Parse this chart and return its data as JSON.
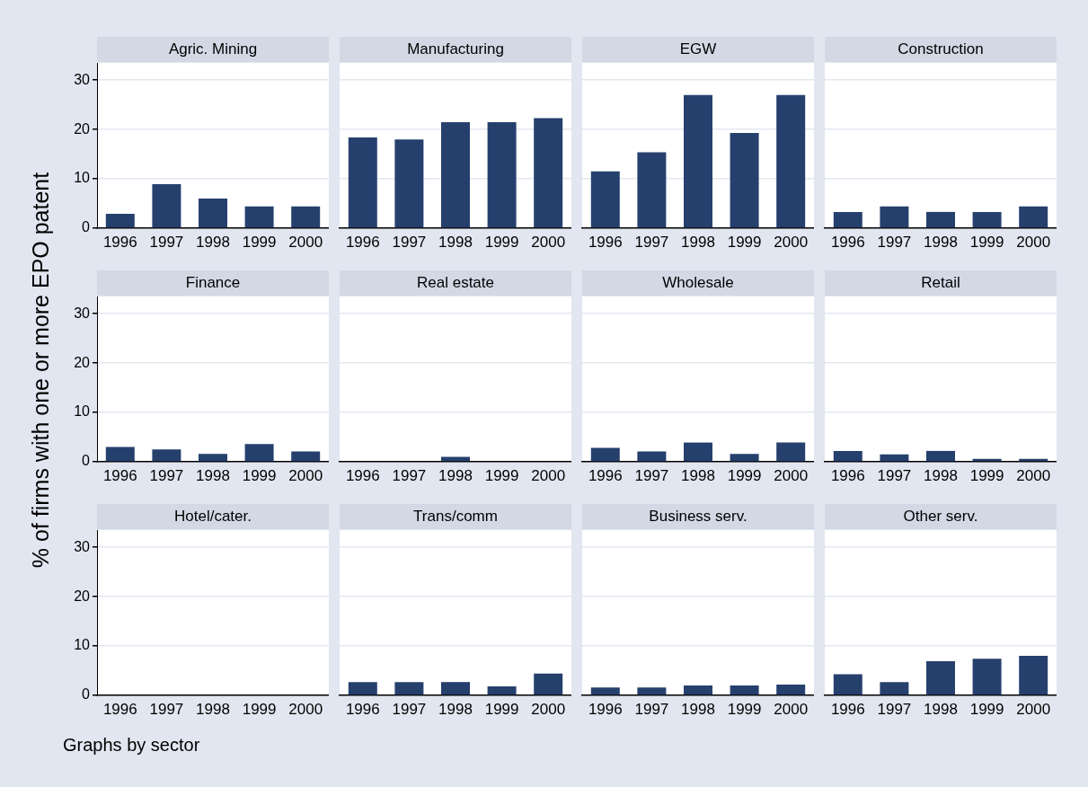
{
  "chart_data": [
    {
      "type": "bar",
      "title": "Agric. Mining",
      "ylabel": "% of firms with one or more EPO patent",
      "categories": [
        "1996",
        "1997",
        "1998",
        "1999",
        "2000"
      ],
      "values": [
        2.9,
        8.9,
        6.0,
        4.4,
        4.4
      ],
      "color": "#26406e",
      "ylim": [
        0,
        33.5
      ],
      "yticks": [
        0,
        10,
        20,
        30
      ],
      "grid": "y"
    },
    {
      "type": "bar",
      "title": "Manufacturing",
      "categories": [
        "1996",
        "1997",
        "1998",
        "1999",
        "2000"
      ],
      "values": [
        18.4,
        18.0,
        21.5,
        21.5,
        22.3
      ],
      "color": "#26406e",
      "ylim": [
        0,
        33.5
      ],
      "yticks": [
        0,
        10,
        20,
        30
      ],
      "grid": "y",
      "tick_labels": "x"
    },
    {
      "type": "bar",
      "title": "EGW",
      "categories": [
        "1996",
        "1997",
        "1998",
        "1999",
        "2000"
      ],
      "values": [
        11.5,
        15.4,
        27.0,
        19.3,
        27.0
      ],
      "color": "#26406e",
      "ylim": [
        0,
        33.5
      ],
      "yticks": [
        0,
        10,
        20,
        30
      ],
      "grid": "y",
      "tick_labels": "x"
    },
    {
      "type": "bar",
      "title": "Construction",
      "categories": [
        "1996",
        "1997",
        "1998",
        "1999",
        "2000"
      ],
      "values": [
        3.3,
        4.4,
        3.3,
        3.3,
        4.4
      ],
      "color": "#26406e",
      "ylim": [
        0,
        33.5
      ],
      "yticks": [
        0,
        10,
        20,
        30
      ],
      "grid": "y",
      "tick_labels": "x"
    },
    {
      "type": "bar",
      "title": "Finance",
      "categories": [
        "1996",
        "1997",
        "1998",
        "1999",
        "2000"
      ],
      "values": [
        3.0,
        2.5,
        1.6,
        3.6,
        2.1
      ],
      "color": "#26406e",
      "ylim": [
        0,
        33.5
      ],
      "yticks": [
        0,
        10,
        20,
        30
      ],
      "grid": "y"
    },
    {
      "type": "bar",
      "title": "Real estate",
      "categories": [
        "1996",
        "1997",
        "1998",
        "1999",
        "2000"
      ],
      "values": [
        0,
        0,
        1.0,
        0,
        0
      ],
      "color": "#26406e",
      "ylim": [
        0,
        33.5
      ],
      "yticks": [
        0,
        10,
        20,
        30
      ],
      "grid": "y",
      "tick_labels": "x"
    },
    {
      "type": "bar",
      "title": "Wholesale",
      "categories": [
        "1996",
        "1997",
        "1998",
        "1999",
        "2000"
      ],
      "values": [
        2.8,
        2.1,
        3.9,
        1.6,
        3.9
      ],
      "color": "#26406e",
      "ylim": [
        0,
        33.5
      ],
      "yticks": [
        0,
        10,
        20,
        30
      ],
      "grid": "y",
      "tick_labels": "x"
    },
    {
      "type": "bar",
      "title": "Retail",
      "categories": [
        "1996",
        "1997",
        "1998",
        "1999",
        "2000"
      ],
      "values": [
        2.2,
        1.5,
        2.2,
        0.6,
        0.6
      ],
      "color": "#26406e",
      "ylim": [
        0,
        33.5
      ],
      "yticks": [
        0,
        10,
        20,
        30
      ],
      "grid": "y",
      "tick_labels": "x"
    },
    {
      "type": "bar",
      "title": "Hotel/cater.",
      "annotations": [
        "Graphs by sector"
      ],
      "categories": [
        "1996",
        "1997",
        "1998",
        "1999",
        "2000"
      ],
      "values": [
        0,
        0,
        0,
        0,
        0
      ],
      "color": "#26406e",
      "ylim": [
        0,
        33.5
      ],
      "yticks": [
        0,
        10,
        20,
        30
      ],
      "grid": "y"
    },
    {
      "type": "bar",
      "title": "Trans/comm",
      "categories": [
        "1996",
        "1997",
        "1998",
        "1999",
        "2000"
      ],
      "values": [
        2.7,
        2.7,
        2.7,
        1.8,
        4.4
      ],
      "color": "#26406e",
      "ylim": [
        0,
        33.5
      ],
      "yticks": [
        0,
        10,
        20,
        30
      ],
      "grid": "y",
      "tick_labels": "x"
    },
    {
      "type": "bar",
      "title": "Business serv.",
      "categories": [
        "1996",
        "1997",
        "1998",
        "1999",
        "2000"
      ],
      "values": [
        1.6,
        1.6,
        2.0,
        2.0,
        2.2
      ],
      "color": "#26406e",
      "ylim": [
        0,
        33.5
      ],
      "yticks": [
        0,
        10,
        20,
        30
      ],
      "grid": "y",
      "tick_labels": "x"
    },
    {
      "type": "bar",
      "title": "Other serv.",
      "categories": [
        "1996",
        "1997",
        "1998",
        "1999",
        "2000"
      ],
      "values": [
        4.3,
        2.7,
        6.9,
        7.4,
        8.0
      ],
      "color": "#26406e",
      "ylim": [
        0,
        33.5
      ],
      "yticks": [
        0,
        10,
        20,
        30
      ],
      "grid": "y",
      "tick_labels": "x"
    }
  ]
}
